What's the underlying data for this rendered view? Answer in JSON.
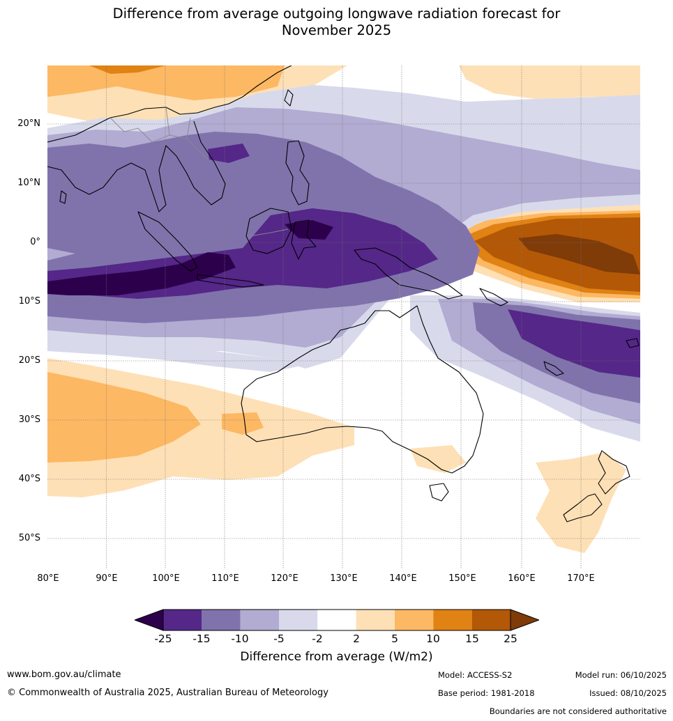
{
  "title": {
    "line1": "Difference from average outgoing longwave radiation forecast for",
    "line2": "November 2025"
  },
  "map": {
    "region": "Indo-Pacific and Australia",
    "lat_labels": [
      "20°N",
      "10°N",
      "0°",
      "10°S",
      "20°S",
      "30°S",
      "40°S",
      "50°S"
    ],
    "lon_labels": [
      "80°E",
      "90°E",
      "100°E",
      "110°E",
      "120°E",
      "130°E",
      "140°E",
      "150°E",
      "160°E",
      "170°E"
    ]
  },
  "legend": {
    "ticks": [
      "-25",
      "-15",
      "-10",
      "-5",
      "-2",
      "2",
      "5",
      "10",
      "15",
      "25"
    ],
    "colors": [
      "#2d004b",
      "#542788",
      "#8073ac",
      "#b2abd2",
      "#d8daeb",
      "#ffffff",
      "#fee0b6",
      "#fdb863",
      "#e08214",
      "#b35806",
      "#7f3b08"
    ],
    "label": "Difference from average (W/m2)"
  },
  "footer": {
    "website": "www.bom.gov.au/climate",
    "copyright": "© Commonwealth of Australia 2025, Australian Bureau of Meteorology",
    "model": "Model: ACCESS-S2",
    "model_run": "Model run: 06/10/2025",
    "base_period": "Base period: 1981-2018",
    "issued": "Issued: 08/10/2025",
    "disclaimer": "Boundaries are not considered authoritative"
  }
}
